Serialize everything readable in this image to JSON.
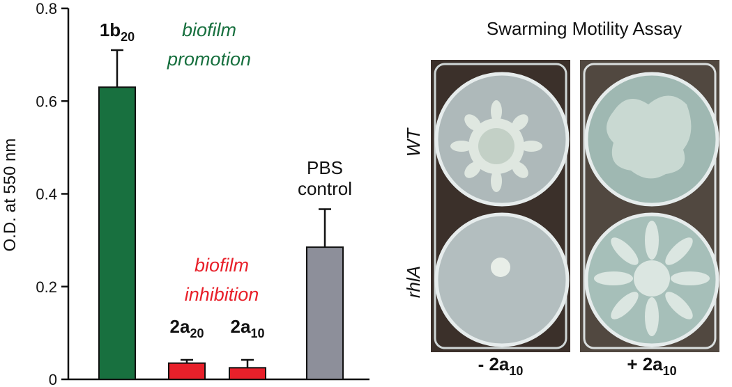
{
  "chart_data": {
    "type": "bar",
    "ylabel": "O.D. at 550 nm",
    "ylim": [
      0,
      0.8
    ],
    "yticks": [
      0,
      0.2,
      0.4,
      0.6,
      0.8
    ],
    "values": [
      0.63,
      0.035,
      0.025,
      0.285
    ],
    "errors": [
      0.08,
      0.007,
      0.017,
      0.082
    ],
    "colors": [
      "#18703f",
      "#e8202a",
      "#e8202a",
      "#8d8f9a"
    ],
    "bar_labels": [
      {
        "text": "1b",
        "sub": "20"
      },
      {
        "text": "2a",
        "sub": "20"
      },
      {
        "text": "2a",
        "sub": "10"
      },
      {
        "lines": [
          "PBS",
          "control"
        ]
      }
    ],
    "annotations": [
      {
        "lines": [
          "biofilm",
          "promotion"
        ],
        "color": "#18703f"
      },
      {
        "lines": [
          "biofilm",
          "inhibition"
        ],
        "color": "#e8202a"
      }
    ]
  },
  "photo": {
    "title": "Swarming Motility Assay",
    "row_labels": [
      "WT",
      "rhlA"
    ],
    "column_labels": [
      {
        "text": "- 2a",
        "sub": "10"
      },
      {
        "text": "+ 2a",
        "sub": "10"
      }
    ]
  }
}
